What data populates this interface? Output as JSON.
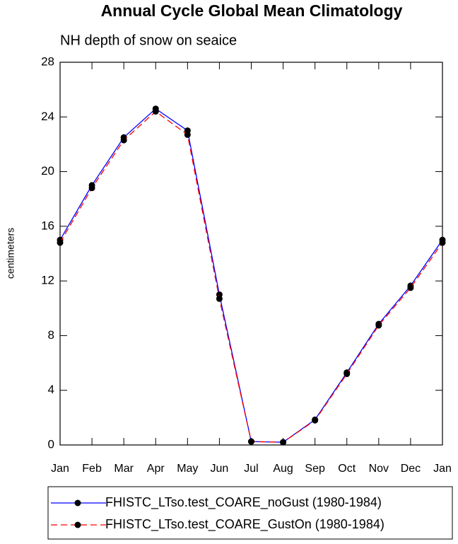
{
  "chart_data": {
    "type": "line",
    "title": "Annual Cycle Global Mean Climatology",
    "subtitle": "NH depth of snow on seaice",
    "y_label": "centimeters",
    "categories": [
      "Jan",
      "Feb",
      "Mar",
      "Apr",
      "May",
      "Jun",
      "Jul",
      "Aug",
      "Sep",
      "Oct",
      "Nov",
      "Dec",
      "Jan"
    ],
    "series": [
      {
        "name": "FHISTC_LTso.test_COARE_noGust (1980-1984)",
        "color": "#0000ff",
        "dash": "solid",
        "values": [
          15.0,
          19.0,
          22.5,
          24.6,
          23.0,
          11.0,
          0.25,
          0.2,
          1.85,
          5.3,
          8.85,
          11.65,
          15.0
        ]
      },
      {
        "name": "FHISTC_LTso.test_COARE_GustOn (1980-1984)",
        "color": "#ff0000",
        "dash": "dashed",
        "values": [
          14.8,
          18.8,
          22.3,
          24.4,
          22.7,
          10.7,
          0.25,
          0.2,
          1.8,
          5.2,
          8.75,
          11.5,
          14.8
        ]
      }
    ],
    "ylim": [
      0,
      28
    ],
    "yticks": [
      0,
      4,
      8,
      12,
      16,
      20,
      24,
      28
    ],
    "grid": false
  }
}
